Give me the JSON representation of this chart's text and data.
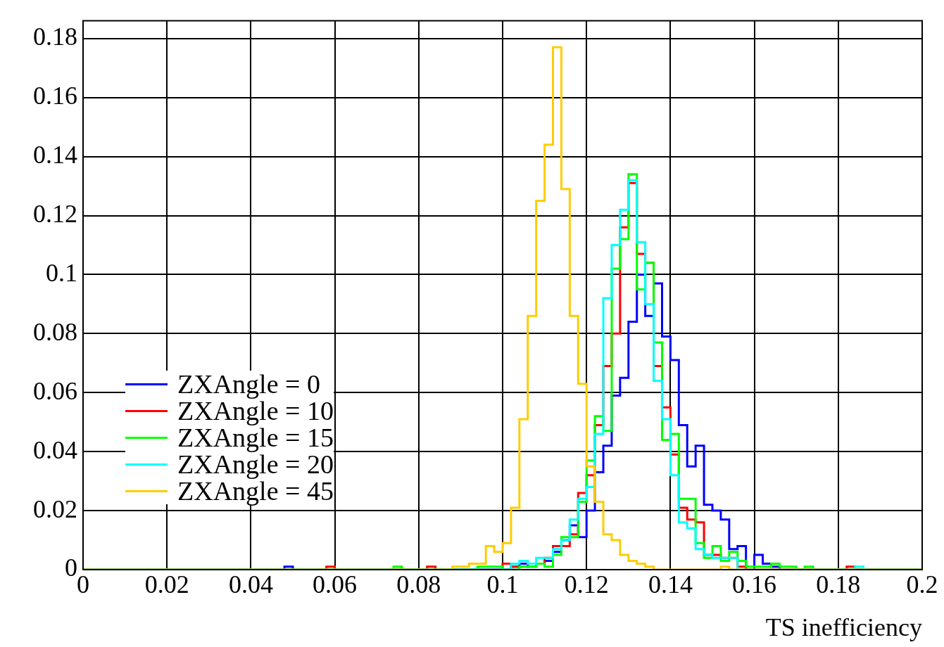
{
  "chart_data": {
    "type": "histogram",
    "xlabel": "TS inefficiency",
    "bins": [
      0,
      0.002,
      0.004,
      0.006,
      0.008,
      0.01,
      0.012,
      0.014,
      0.016,
      0.018,
      0.02,
      0.022,
      0.024,
      0.026,
      0.028,
      0.03,
      0.032,
      0.034,
      0.036,
      0.038,
      0.04,
      0.042,
      0.044,
      0.046,
      0.048,
      0.05,
      0.052,
      0.054,
      0.056,
      0.058,
      0.06,
      0.062,
      0.064,
      0.066,
      0.068,
      0.07,
      0.072,
      0.074,
      0.076,
      0.078,
      0.08,
      0.082,
      0.084,
      0.086,
      0.088,
      0.09,
      0.092,
      0.094,
      0.096,
      0.098,
      0.1,
      0.102,
      0.104,
      0.106,
      0.108,
      0.11,
      0.112,
      0.114,
      0.116,
      0.118,
      0.12,
      0.122,
      0.124,
      0.126,
      0.128,
      0.13,
      0.132,
      0.134,
      0.136,
      0.138,
      0.14,
      0.142,
      0.144,
      0.146,
      0.148,
      0.15,
      0.152,
      0.154,
      0.156,
      0.158,
      0.16,
      0.162,
      0.164,
      0.166,
      0.168,
      0.17,
      0.172,
      0.174,
      0.176,
      0.178,
      0.18,
      0.182,
      0.184,
      0.186,
      0.188,
      0.19,
      0.192,
      0.194,
      0.196,
      0.198,
      0.2
    ],
    "series": [
      {
        "name": "ZXAngle = 0",
        "color": "#0000ff",
        "values": [
          0,
          0,
          0,
          0,
          0,
          0,
          0,
          0,
          0,
          0,
          0,
          0,
          0,
          0,
          0,
          0,
          0,
          0,
          0,
          0,
          0,
          0,
          0,
          0,
          0.001,
          0,
          0,
          0,
          0,
          0,
          0,
          0,
          0,
          0,
          0,
          0,
          0,
          0,
          0,
          0,
          0,
          0,
          0,
          0,
          0,
          0,
          0,
          0,
          0,
          0,
          0,
          0.001,
          0.002,
          0.001,
          0.002,
          0.003,
          0.006,
          0.01,
          0.015,
          0.011,
          0.02,
          0.033,
          0.042,
          0.059,
          0.065,
          0.084,
          0.1,
          0.086,
          0.097,
          0.079,
          0.071,
          0.049,
          0.035,
          0.042,
          0.022,
          0.02,
          0.017,
          0.007,
          0.008,
          0,
          0.005,
          0.002,
          0.001,
          0,
          0,
          0,
          0,
          0,
          0,
          0,
          0,
          0,
          0,
          0,
          0,
          0,
          0,
          0,
          0,
          0
        ]
      },
      {
        "name": "ZXAngle = 10",
        "color": "#ff0000",
        "values": [
          0,
          0,
          0,
          0,
          0,
          0,
          0,
          0,
          0,
          0,
          0,
          0,
          0,
          0,
          0,
          0,
          0,
          0,
          0,
          0,
          0,
          0,
          0,
          0,
          0,
          0,
          0,
          0,
          0,
          0.001,
          0,
          0,
          0,
          0,
          0,
          0,
          0,
          0,
          0,
          0,
          0,
          0.001,
          0,
          0,
          0,
          0,
          0,
          0,
          0,
          0,
          0.002,
          0.001,
          0.001,
          0.002,
          0.002,
          0.004,
          0.008,
          0.008,
          0.012,
          0.026,
          0.032,
          0.049,
          0.069,
          0.08,
          0.116,
          0.131,
          0.107,
          0.104,
          0.069,
          0.055,
          0.039,
          0.021,
          0.017,
          0.016,
          0.005,
          0.005,
          0.004,
          0.004,
          0.001,
          0,
          0,
          0,
          0,
          0,
          0,
          0,
          0,
          0,
          0,
          0,
          0,
          0.001,
          0,
          0,
          0,
          0,
          0,
          0,
          0,
          0
        ]
      },
      {
        "name": "ZXAngle = 15",
        "color": "#00ff00",
        "values": [
          0,
          0,
          0,
          0,
          0,
          0,
          0,
          0,
          0,
          0,
          0,
          0,
          0,
          0,
          0,
          0,
          0,
          0,
          0,
          0,
          0,
          0,
          0,
          0,
          0,
          0,
          0,
          0,
          0,
          0,
          0,
          0,
          0,
          0,
          0,
          0,
          0,
          0.001,
          0,
          0,
          0,
          0,
          0,
          0,
          0,
          0,
          0,
          0.001,
          0.001,
          0.001,
          0,
          0,
          0.001,
          0.001,
          0.002,
          0.001,
          0.005,
          0.011,
          0.011,
          0.023,
          0.037,
          0.052,
          0.047,
          0.102,
          0.112,
          0.134,
          0.095,
          0.104,
          0.077,
          0.044,
          0.046,
          0.024,
          0.024,
          0.009,
          0.004,
          0.008,
          0.003,
          0.006,
          0.003,
          0.001,
          0.001,
          0.001,
          0.002,
          0.001,
          0.001,
          0,
          0.001,
          0,
          0,
          0,
          0,
          0,
          0,
          0,
          0,
          0,
          0,
          0,
          0,
          0
        ]
      },
      {
        "name": "ZXAngle = 20",
        "color": "#00ffff",
        "values": [
          0,
          0,
          0,
          0,
          0,
          0,
          0,
          0,
          0,
          0,
          0,
          0,
          0,
          0,
          0,
          0,
          0,
          0,
          0,
          0,
          0,
          0,
          0,
          0,
          0,
          0,
          0,
          0,
          0,
          0,
          0,
          0,
          0,
          0,
          0,
          0,
          0,
          0,
          0,
          0,
          0,
          0,
          0,
          0,
          0,
          0,
          0,
          0,
          0,
          0,
          0,
          0.002,
          0.003,
          0.002,
          0.004,
          0.004,
          0.007,
          0.01,
          0.017,
          0.024,
          0.028,
          0.046,
          0.092,
          0.11,
          0.122,
          0.132,
          0.111,
          0.09,
          0.064,
          0.051,
          0.032,
          0.016,
          0.014,
          0.007,
          0.005,
          0.004,
          0.004,
          0.004,
          0,
          0,
          0,
          0,
          0,
          0,
          0,
          0,
          0,
          0,
          0,
          0,
          0,
          0,
          0.001,
          0,
          0,
          0,
          0,
          0,
          0,
          0
        ]
      },
      {
        "name": "ZXAngle = 45",
        "color": "#ffcc00",
        "values": [
          0,
          0,
          0,
          0,
          0,
          0,
          0,
          0,
          0,
          0,
          0,
          0,
          0,
          0,
          0,
          0,
          0,
          0,
          0,
          0,
          0,
          0,
          0,
          0,
          0,
          0,
          0,
          0,
          0,
          0,
          0,
          0,
          0,
          0,
          0,
          0,
          0,
          0,
          0,
          0,
          0,
          0,
          0,
          0,
          0.001,
          0.001,
          0.002,
          0.002,
          0.008,
          0.006,
          0.009,
          0.021,
          0.051,
          0.086,
          0.125,
          0.144,
          0.177,
          0.129,
          0.086,
          0.063,
          0.035,
          0.023,
          0.012,
          0.01,
          0.005,
          0.003,
          0.002,
          0.001,
          0,
          0,
          0,
          0,
          0,
          0,
          0,
          0,
          0.001,
          0,
          0,
          0,
          0,
          0,
          0,
          0,
          0,
          0,
          0,
          0,
          0,
          0,
          0,
          0,
          0,
          0,
          0,
          0,
          0,
          0,
          0,
          0
        ]
      }
    ],
    "xlim": [
      0,
      0.2
    ],
    "xticks": [
      0,
      0.02,
      0.04,
      0.06,
      0.08,
      0.1,
      0.12,
      0.14,
      0.16,
      0.18,
      0.2
    ],
    "ylim": [
      0,
      0.186
    ],
    "yticks": [
      0,
      0.02,
      0.04,
      0.06,
      0.08,
      0.1,
      0.12,
      0.14,
      0.16,
      0.18
    ],
    "grid": true,
    "legend": "bottom left"
  }
}
